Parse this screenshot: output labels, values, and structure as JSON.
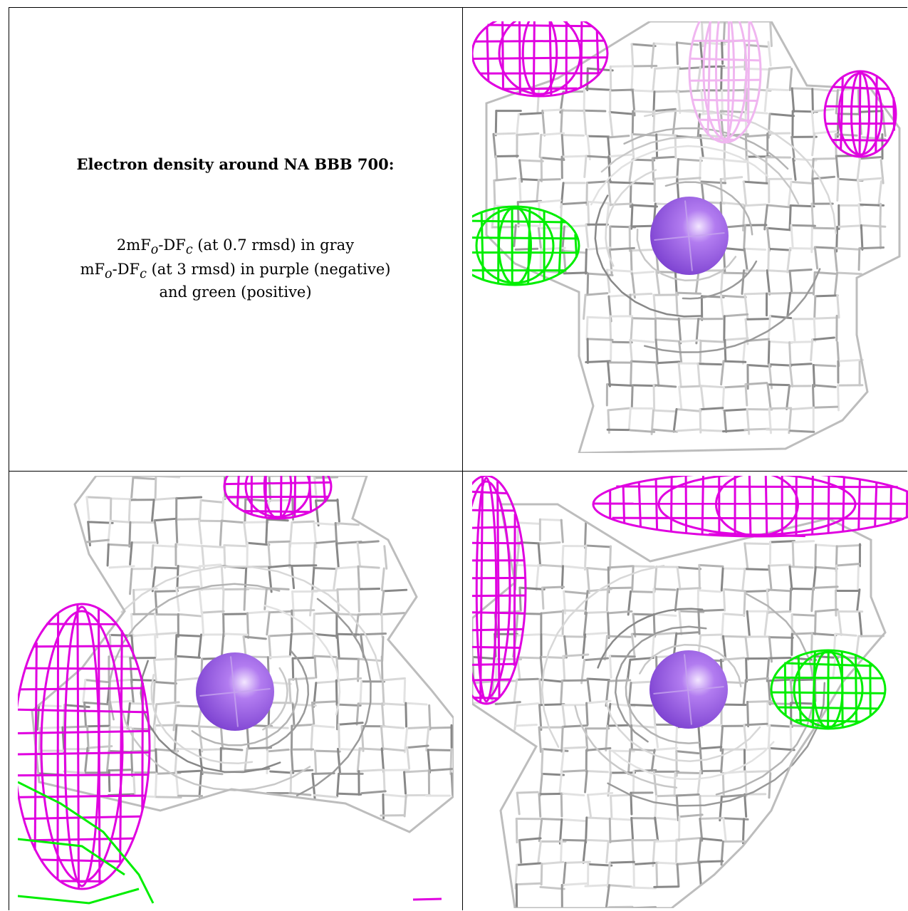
{
  "caption": {
    "title": "Electron density around NA BBB 700:",
    "line1_prefix": "2mF",
    "line1_sub1": "o",
    "line1_mid": "-DF",
    "line1_sub2": "c",
    "line1_suffix": " (at 0.7 rmsd) in gray",
    "line2_prefix": "mF",
    "line2_sub1": "o",
    "line2_mid": "-DF",
    "line2_sub2": "c",
    "line2_suffix": " (at 3 rmsd) in purple (negative)",
    "line3": "and green (positive)"
  },
  "colors": {
    "mesh_2fofc": "#b0b0b0",
    "mesh_negative": "#e000e0",
    "mesh_positive": "#00ee00",
    "sodium_atom": "#9b59e6"
  },
  "panels": [
    {
      "view": "view-1"
    },
    {
      "view": "view-2"
    },
    {
      "view": "view-3"
    }
  ]
}
